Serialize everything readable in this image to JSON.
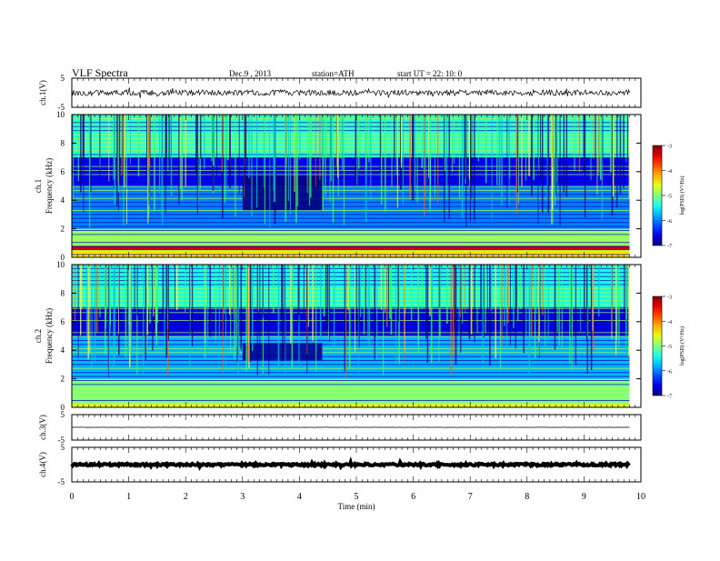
{
  "header": {
    "title": "VLF  Spectra",
    "date": "Dec.9  , 2013",
    "station": "station=ATH",
    "start": "start  UT =   22: 10: 0"
  },
  "chart_data": [
    {
      "panel": "ch1-waveform",
      "type": "line",
      "ylabel": "ch.1(V)",
      "yticks": [
        "5",
        "-5"
      ],
      "ylim": [
        -5,
        5
      ],
      "xlim": [
        0,
        10
      ],
      "series": [
        {
          "x_range": [
            0,
            9.8
          ],
          "mean": 0.0,
          "noise_amplitude": 1.0,
          "color": "#000000"
        }
      ]
    },
    {
      "panel": "ch1-spectrogram",
      "type": "heatmap",
      "ylabel_top": "ch.1",
      "ylabel": "Frequency  (kHz)",
      "yticks": [
        "0",
        "2",
        "4",
        "6",
        "8",
        "10"
      ],
      "ylim": [
        0,
        10
      ],
      "xlim": [
        0,
        10
      ],
      "data_x_range": [
        0,
        9.8
      ],
      "colorbar": {
        "label": "log(PSD) (V²/Hz)",
        "ticks": [
          "-3",
          "-4",
          "-5",
          "-6",
          "-7"
        ],
        "range": [
          -7,
          -3
        ]
      },
      "bands_khz": [
        {
          "from": 0.0,
          "to": 0.5,
          "level": -4.4
        },
        {
          "from": 0.5,
          "to": 0.8,
          "level": -3.3
        },
        {
          "from": 0.8,
          "to": 2.0,
          "level": -4.9
        },
        {
          "from": 2.0,
          "to": 5.0,
          "level": -6.0
        },
        {
          "from": 5.0,
          "to": 7.0,
          "level": -6.5
        },
        {
          "from": 7.0,
          "to": 10.0,
          "level": -5.3
        }
      ],
      "quiet_segment": {
        "t_start_min": 3.0,
        "t_end_min": 4.4,
        "f_low_khz": 3.3,
        "f_high_khz": 5.7,
        "level": -7.0
      }
    },
    {
      "panel": "ch2-spectrogram",
      "type": "heatmap",
      "ylabel_top": "ch.2",
      "ylabel": "Frequency  (kHz)",
      "yticks": [
        "0",
        "2",
        "4",
        "6",
        "8",
        "10"
      ],
      "ylim": [
        0,
        10
      ],
      "xlim": [
        0,
        10
      ],
      "data_x_range": [
        0,
        9.8
      ],
      "colorbar": {
        "label": "log(PSD) (V²/Hz)",
        "ticks": [
          "-3",
          "-4",
          "-5",
          "-6",
          "-7"
        ],
        "range": [
          -7,
          -3
        ]
      },
      "bands_khz": [
        {
          "from": 0.0,
          "to": 0.3,
          "level": -4.6
        },
        {
          "from": 0.3,
          "to": 2.0,
          "level": -5.0
        },
        {
          "from": 2.0,
          "to": 5.0,
          "level": -5.8
        },
        {
          "from": 5.0,
          "to": 7.0,
          "level": -6.6
        },
        {
          "from": 7.0,
          "to": 10.0,
          "level": -5.4
        }
      ],
      "quiet_segment": {
        "t_start_min": 3.0,
        "t_end_min": 4.4,
        "f_low_khz": 3.3,
        "f_high_khz": 4.5,
        "level": -6.9
      }
    },
    {
      "panel": "ch3-waveform",
      "type": "line",
      "ylabel": "ch.3(V)",
      "yticks": [
        "5",
        "-5"
      ],
      "ylim": [
        -5,
        5
      ],
      "xlim": [
        0,
        10
      ],
      "series": [
        {
          "x_range": [
            0,
            9.8
          ],
          "mean": 0.0,
          "noise_amplitude": 0.05,
          "color": "#000000"
        }
      ]
    },
    {
      "panel": "ch4-waveform",
      "type": "line",
      "ylabel": "ch.4(V)",
      "yticks": [
        "5",
        "-5"
      ],
      "ylim": [
        -5,
        5
      ],
      "xlim": [
        0,
        10
      ],
      "series": [
        {
          "x_range": [
            0,
            9.8
          ],
          "mean": 0.0,
          "noise_amplitude": 0.3,
          "color": "#000000"
        }
      ]
    }
  ],
  "x_axis": {
    "label": "Time  (min)",
    "ticks": [
      "0",
      "1",
      "2",
      "3",
      "4",
      "5",
      "6",
      "7",
      "8",
      "9",
      "10"
    ],
    "range": [
      0,
      10
    ]
  }
}
